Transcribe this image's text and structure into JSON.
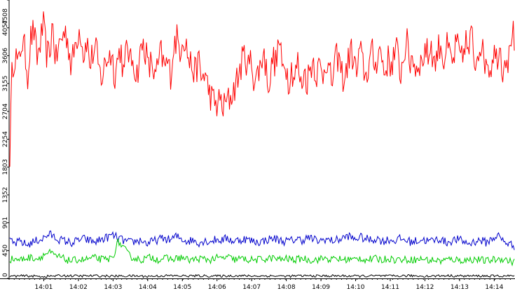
{
  "chart_data": {
    "type": "line",
    "grid": false,
    "legend": "none",
    "ylim": [
      0,
      4508
    ],
    "y_ticks": [
      0,
      450,
      901,
      1352,
      1803,
      2254,
      2704,
      3155,
      3606,
      4057,
      4508
    ],
    "x_ticks": [
      "14:01",
      "14:02",
      "14:03",
      "14:04",
      "14:05",
      "14:06",
      "14:07",
      "14:08",
      "14:09",
      "14:10",
      "14:11",
      "14:12",
      "14:13",
      "14:14"
    ],
    "x_range_minutes": [
      0,
      14.6
    ],
    "x_tick_start_minute": 1,
    "series": [
      {
        "color": "#ff0000",
        "values": [
          1600,
          3450,
          3650,
          3400,
          3850,
          3700,
          3300,
          3900,
          4000,
          3550,
          3800,
          4100,
          3650,
          3600,
          4150,
          3500,
          3750,
          3900,
          4000,
          3850,
          3400,
          3700,
          3950,
          4050,
          3600,
          3900,
          3450,
          3650,
          3700,
          3350,
          3250,
          3500,
          3600,
          3650,
          3300,
          3550,
          3750,
          3200,
          3900,
          3450,
          3600,
          3250,
          3550,
          3800,
          3700,
          3350,
          3550,
          3200,
          3450,
          3650,
          3400,
          3500,
          3300,
          3750,
          3900,
          3700,
          3950,
          3800,
          3500,
          3450,
          3300,
          3550,
          3200,
          3350,
          3100,
          2950,
          2850,
          2800,
          2900,
          2750,
          2850,
          2900,
          3000,
          3150,
          3300,
          3500,
          3650,
          3400,
          3550,
          3200,
          3300,
          3450,
          3700,
          3300,
          3150,
          3600,
          3450,
          3900,
          3350,
          3550,
          3200,
          3400,
          3250,
          3500,
          3100,
          3350,
          3200,
          3400,
          3550,
          3300,
          3450,
          3250,
          3600,
          3350,
          3150,
          3500,
          3600,
          3350,
          3200,
          3450,
          3700,
          3550,
          3300,
          3700,
          3450,
          3250,
          3500,
          3650,
          3400,
          3750,
          3600,
          3300,
          3550,
          3450,
          3600,
          3700,
          3300,
          3550,
          3900,
          3450,
          3650,
          3350,
          3550,
          3450,
          3750,
          3600,
          3800,
          3450,
          3650,
          3850,
          3500,
          3750,
          3600,
          3450,
          3800,
          3650,
          3500,
          3900,
          3600,
          4000,
          3450,
          3700,
          3850,
          3500,
          3600,
          3350,
          3700,
          3550,
          3800,
          3400,
          3650,
          3500,
          4100,
          3700
        ],
        "noise_amplitude": 260
      },
      {
        "color": "#0000cc",
        "values": [
          600,
          560,
          600,
          540,
          580,
          620,
          650,
          720,
          660,
          620,
          600,
          570,
          620,
          640,
          610,
          590,
          630,
          660,
          700,
          650,
          610,
          580,
          600,
          620,
          560,
          600,
          630,
          650,
          620,
          680,
          640,
          600,
          620,
          580,
          610,
          600,
          630,
          620,
          650,
          600,
          620,
          640,
          610,
          590,
          600,
          630,
          650,
          620,
          600,
          610,
          640,
          620,
          660,
          630,
          600,
          640,
          610,
          620,
          650,
          690,
          630,
          670,
          640,
          620,
          650,
          600,
          630,
          610,
          640,
          620,
          590,
          610,
          630,
          600,
          620,
          640,
          580,
          610,
          630,
          600,
          560,
          600,
          620,
          580,
          640,
          700,
          600,
          560,
          520
        ],
        "noise_amplitude": 70
      },
      {
        "color": "#00cc00",
        "values": [
          300,
          320,
          300,
          330,
          340,
          320,
          380,
          420,
          360,
          340,
          300,
          280,
          310,
          300,
          320,
          330,
          310,
          300,
          340,
          600,
          480,
          360,
          320,
          300,
          330,
          340,
          300,
          330,
          310,
          320,
          340,
          300,
          300,
          320,
          310,
          300,
          330,
          320,
          350,
          300,
          320,
          310,
          300,
          300,
          310,
          320,
          330,
          300,
          320,
          310,
          300,
          330,
          300,
          300,
          310,
          330,
          300,
          320,
          300,
          310,
          300,
          330,
          300,
          310,
          320,
          300,
          330,
          300,
          310,
          300,
          310,
          300,
          320,
          290,
          300,
          280,
          300,
          310,
          300,
          290,
          300,
          310,
          300,
          280,
          300,
          310,
          320,
          280,
          260
        ],
        "noise_amplitude": 60
      },
      {
        "color": "#000000",
        "values": [
          35,
          40,
          30,
          45,
          38,
          42,
          36,
          40,
          34,
          44,
          39,
          41,
          37,
          43,
          38,
          40,
          36,
          42,
          39,
          41,
          37,
          40,
          38,
          42,
          36,
          44,
          38,
          40,
          37,
          41
        ],
        "noise_amplitude": 20
      }
    ]
  }
}
